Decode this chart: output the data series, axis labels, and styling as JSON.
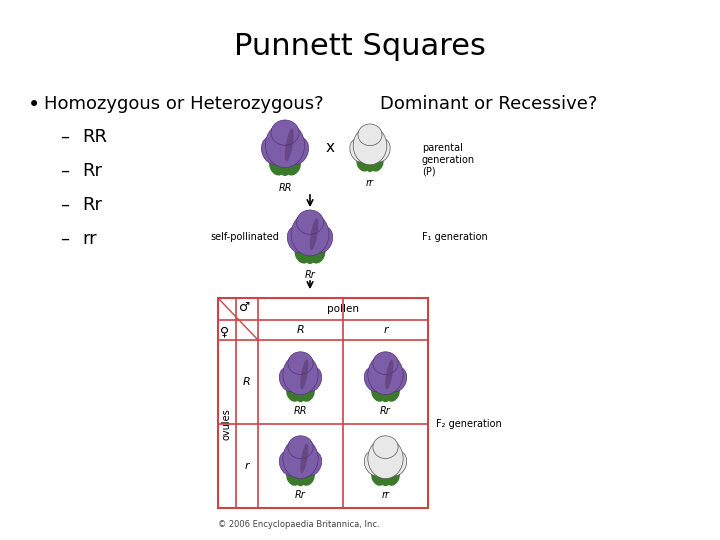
{
  "title": "Punnett Squares",
  "title_fontsize": 22,
  "bg_color": "#ffffff",
  "bullet_text": "Homozygous or Heterozygous?",
  "bullet_right_text": "Dominant or Recessive?",
  "bullet_fontsize": 13,
  "sub_items": [
    "RR",
    "Rr",
    "Rr",
    "rr"
  ],
  "sub_fontsize": 13,
  "purple_color": "#7B5EA7",
  "white_petal_color": "#e8e8e8",
  "green_color": "#3a7a2a",
  "table_color": "#cc4444",
  "text_color": "#000000",
  "sub_text_color": "#333333"
}
